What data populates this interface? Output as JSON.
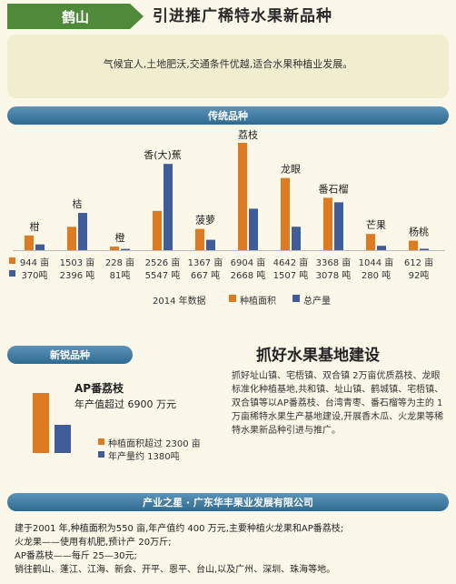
{
  "header": {
    "badge": "鹤山",
    "title": "引进推广稀特水果新品种"
  },
  "intro": {
    "text": "气候宜人,土地肥沃,交通条件优越,适合水果种植业发展。"
  },
  "traditional": {
    "section_title": "传统品种"
  },
  "chart_data": {
    "type": "bar",
    "categories": [
      "柑",
      "桔",
      "橙",
      "香(大)蕉",
      "菠萝",
      "荔枝",
      "龙眼",
      "番石榴",
      "芒果",
      "杨桃"
    ],
    "series": [
      {
        "name": "种植面积",
        "unit": "亩",
        "values": [
          944,
          1503,
          228,
          2526,
          1367,
          6904,
          4642,
          3368,
          1044,
          612
        ],
        "color": "#e07a1f"
      },
      {
        "name": "总产量",
        "unit": "吨",
        "values": [
          370,
          2396,
          81,
          5547,
          667,
          2668,
          1507,
          3078,
          280,
          92
        ],
        "color": "#3f5d9a"
      }
    ],
    "row_labels": [
      [
        "944 亩",
        "1503 亩",
        "228 亩",
        "2526 亩",
        "1367 亩",
        "6904 亩",
        "4642 亩",
        "3368 亩",
        "1044 亩",
        "612 亩"
      ],
      [
        "370吨",
        "2396 吨",
        "81吨",
        "5547 吨",
        "667 吨",
        "2668 吨",
        "1507 吨",
        "3078 吨",
        "280 吨",
        "92吨"
      ]
    ],
    "year_label": "2014 年数据",
    "legend": [
      "种植面积",
      "总产量"
    ],
    "legend_placement": "bottom"
  },
  "new_variety": {
    "section_title": "新锐品种",
    "name": "AP番荔枝",
    "value_text": "年产值超过 6900 万元",
    "bar_values": [
      2300,
      1380
    ],
    "legend": [
      "种植面积超过 2300 亩",
      "年产量约 1380吨"
    ]
  },
  "feature": {
    "title": "抓好水果基地建设",
    "body": "抓好址山镇、宅梧镇、双合镇 2万亩优质荔枝、龙眼标准化种植基地,共和镇、址山镇、鹤城镇、宅梧镇、双合镇等以AP番荔枝、台湾青枣、番石榴等为主的 1万亩稀特水果生产基地建设,开展香木瓜、火龙果等稀特水果新品种引进与推广。"
  },
  "company": {
    "section_title": "产业之星 · 广东华丰果业发展有限公司",
    "lines": [
      "建于2001 年,种植面积为550 亩,年产值约 400 万元,主要种植火龙果和AP番荔枝;",
      "火龙果——使用有机肥,预计产 20万斤;",
      "AP番荔枝——每斤 25—30元;",
      "销往鹤山、蓬江、江海、新会、开平、恩平、台山,以及广州、深圳、珠海等地。"
    ]
  },
  "colors": {
    "orange": "#e07a1f",
    "blue": "#3f5d9a",
    "green": "#4f8a3a",
    "section": "#3a77a0"
  }
}
